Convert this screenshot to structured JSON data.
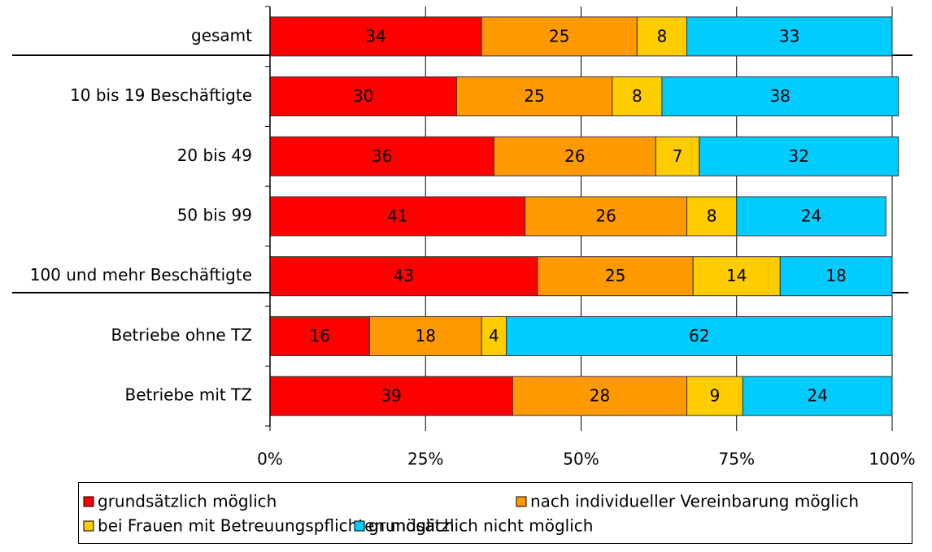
{
  "chart_data": {
    "type": "stacked-barh",
    "categories": [
      "gesamt",
      "10 bis 19 Beschäftigte",
      "20 bis 49",
      "50 bis 99",
      "100 und mehr Beschäftigte",
      "Betriebe ohne TZ",
      "Betriebe mit TZ"
    ],
    "series": [
      {
        "name": "grundsätzlich möglich",
        "color": "#ff0000",
        "values": [
          34,
          30,
          36,
          41,
          43,
          16,
          39
        ]
      },
      {
        "name": "nach individueller Vereinbarung möglich",
        "color": "#ff9900",
        "values": [
          25,
          25,
          26,
          26,
          25,
          18,
          28
        ]
      },
      {
        "name": "bei Frauen mit Betreuungspflichten möglich",
        "color": "#ffcc00",
        "values": [
          8,
          8,
          7,
          8,
          14,
          4,
          9
        ]
      },
      {
        "name": "grundsätzlich nicht möglich",
        "color": "#00ccff",
        "values": [
          33,
          38,
          32,
          24,
          18,
          62,
          24
        ]
      }
    ],
    "xlim": [
      0,
      100
    ],
    "xticks": [
      {
        "value": 0,
        "label": "0%"
      },
      {
        "value": 25,
        "label": "25%"
      },
      {
        "value": 50,
        "label": "50%"
      },
      {
        "value": 75,
        "label": "75%"
      },
      {
        "value": 100,
        "label": "100%"
      }
    ],
    "grid": true,
    "legend": "bottom"
  }
}
